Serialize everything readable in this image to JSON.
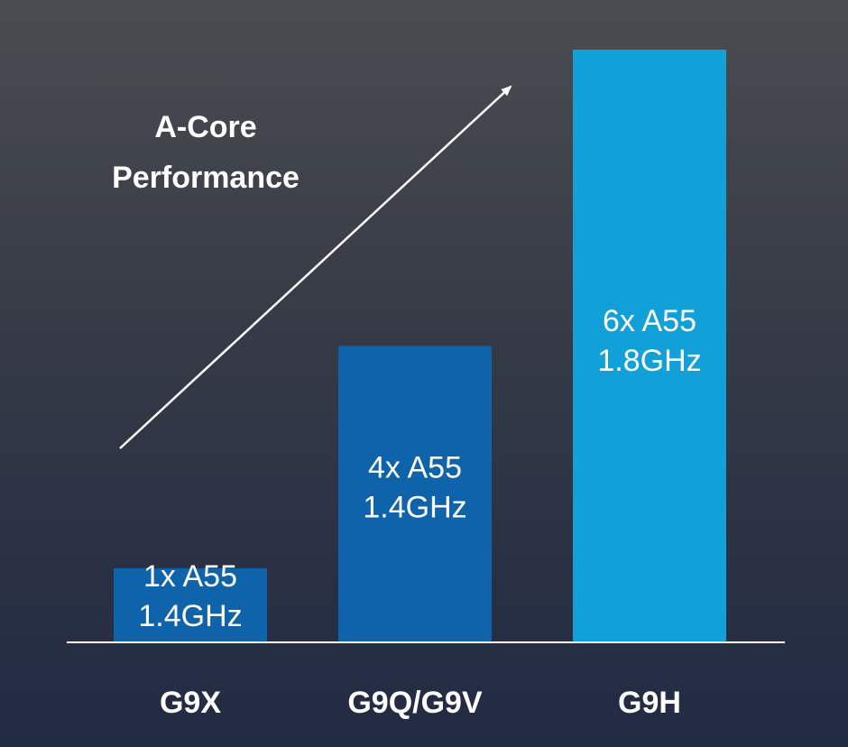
{
  "chart_data": {
    "type": "bar",
    "categories": [
      "G9X",
      "G9Q/G9V",
      "G9H"
    ],
    "values": [
      1,
      4,
      8
    ],
    "bar_labels": [
      [
        "1x A55",
        "1.4GHz"
      ],
      [
        "4x A55",
        "1.4GHz"
      ],
      [
        "6x A55",
        "1.8GHz"
      ]
    ],
    "annotation": [
      "A-Core",
      "Performance"
    ],
    "ylim": [
      0,
      8
    ],
    "grid": false,
    "legend": "none",
    "colors": [
      "#0f63aa",
      "#0f63aa",
      "#12a0d9"
    ],
    "axis_color": "#ffffff",
    "background": "#2a3144"
  }
}
